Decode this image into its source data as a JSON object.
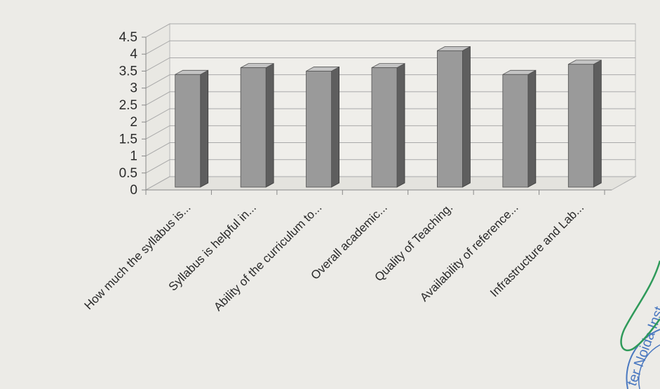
{
  "chart_data": {
    "type": "bar",
    "title": "",
    "xlabel": "",
    "ylabel": "",
    "ylim": [
      0,
      4.5
    ],
    "yticks": [
      0,
      0.5,
      1,
      1.5,
      2,
      2.5,
      3,
      3.5,
      4,
      4.5
    ],
    "ytick_labels": [
      "0",
      "0.5",
      "1",
      "1.5",
      "2",
      "2.5",
      "3",
      "3.5",
      "4",
      "4.5"
    ],
    "grid": true,
    "legend": "none",
    "style": "3d-column",
    "bar_color": "#9a9a9a",
    "categories": [
      "How much the syllabus is...",
      "Syllabus is helpful in...",
      "Ability of the curriculum to...",
      "Overall academic...",
      "Quality of Teaching.",
      "Availability of reference...",
      "Infrastructure and Lab..."
    ],
    "values": [
      3.4,
      3.6,
      3.5,
      3.6,
      4.1,
      3.4,
      3.7
    ]
  },
  "stamp": {
    "text": "ter Noida Inst",
    "color": "#4a78c0",
    "signature_color": "#2f9a5a"
  }
}
